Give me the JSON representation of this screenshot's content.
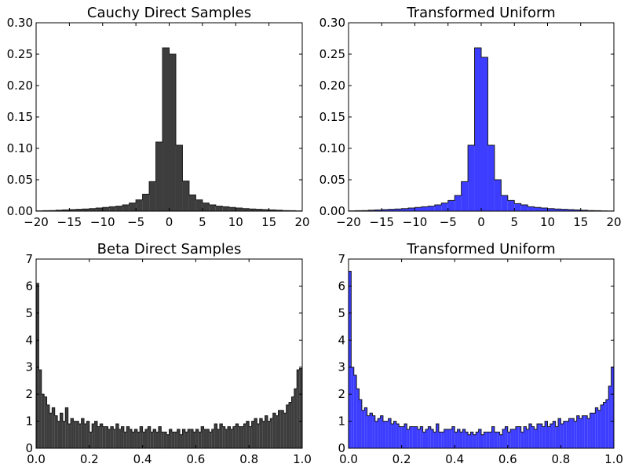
{
  "chart_data": [
    {
      "type": "histogram",
      "title": "Cauchy Direct Samples",
      "color": "#3d3d3d",
      "xlim": [
        -20,
        20
      ],
      "ylim": [
        0,
        0.3
      ],
      "xticks": [
        -20,
        -15,
        -10,
        -5,
        0,
        5,
        10,
        15,
        20
      ],
      "xtick_labels": [
        "−20",
        "−15",
        "−10",
        "−5",
        "0",
        "5",
        "10",
        "15",
        "20"
      ],
      "yticks": [
        0,
        0.05,
        0.1,
        0.15,
        0.2,
        0.25,
        0.3
      ],
      "ytick_labels": [
        "0.00",
        "0.05",
        "0.10",
        "0.15",
        "0.20",
        "0.25",
        "0.30"
      ],
      "bin_edges": [
        -20,
        -19,
        -18,
        -17,
        -16,
        -15,
        -14,
        -13,
        -12,
        -11,
        -10,
        -9,
        -8,
        -7,
        -6,
        -5,
        -4,
        -3,
        -2,
        -1,
        0,
        1,
        2,
        3,
        4,
        5,
        6,
        7,
        8,
        9,
        10,
        11,
        12,
        13,
        14,
        15,
        16,
        17,
        18,
        19,
        20
      ],
      "values": [
        0.0005,
        0.0008,
        0.001,
        0.0015,
        0.002,
        0.0025,
        0.003,
        0.0035,
        0.004,
        0.005,
        0.006,
        0.007,
        0.008,
        0.01,
        0.013,
        0.018,
        0.027,
        0.047,
        0.11,
        0.26,
        0.25,
        0.105,
        0.048,
        0.026,
        0.018,
        0.013,
        0.01,
        0.008,
        0.007,
        0.006,
        0.005,
        0.004,
        0.0035,
        0.003,
        0.0025,
        0.002,
        0.0015,
        0.001,
        0.0008,
        0.0005
      ]
    },
    {
      "type": "histogram",
      "title": "Transformed Uniform",
      "color": "#3d3dff",
      "xlim": [
        -20,
        20
      ],
      "ylim": [
        0,
        0.3
      ],
      "xticks": [
        -20,
        -15,
        -10,
        -5,
        0,
        5,
        10,
        15,
        20
      ],
      "xtick_labels": [
        "−20",
        "−15",
        "−10",
        "−5",
        "0",
        "5",
        "10",
        "15",
        "20"
      ],
      "yticks": [
        0,
        0.05,
        0.1,
        0.15,
        0.2,
        0.25,
        0.3
      ],
      "ytick_labels": [
        "0.00",
        "0.05",
        "0.10",
        "0.15",
        "0.20",
        "0.25",
        "0.30"
      ],
      "bin_edges": [
        -20,
        -19,
        -18,
        -17,
        -16,
        -15,
        -14,
        -13,
        -12,
        -11,
        -10,
        -9,
        -8,
        -7,
        -6,
        -5,
        -4,
        -3,
        -2,
        -1,
        0,
        1,
        2,
        3,
        4,
        5,
        6,
        7,
        8,
        9,
        10,
        11,
        12,
        13,
        14,
        15,
        16,
        17,
        18,
        19,
        20
      ],
      "values": [
        0.0005,
        0.0008,
        0.001,
        0.0015,
        0.002,
        0.0025,
        0.003,
        0.0035,
        0.004,
        0.005,
        0.006,
        0.007,
        0.008,
        0.01,
        0.013,
        0.017,
        0.025,
        0.047,
        0.105,
        0.26,
        0.245,
        0.105,
        0.05,
        0.025,
        0.017,
        0.012,
        0.01,
        0.007,
        0.006,
        0.005,
        0.004,
        0.0035,
        0.003,
        0.0025,
        0.002,
        0.0015,
        0.001,
        0.0008,
        0.0005,
        0.0003
      ]
    },
    {
      "type": "histogram",
      "title": "Beta Direct Samples",
      "color": "#3d3d3d",
      "xlim": [
        0,
        1
      ],
      "ylim": [
        0,
        7
      ],
      "xticks": [
        0,
        0.2,
        0.4,
        0.6,
        0.8,
        1.0
      ],
      "xtick_labels": [
        "0.0",
        "0.2",
        "0.4",
        "0.6",
        "0.8",
        "1.0"
      ],
      "yticks": [
        0,
        1,
        2,
        3,
        4,
        5,
        6,
        7
      ],
      "ytick_labels": [
        "0",
        "1",
        "2",
        "3",
        "4",
        "5",
        "6",
        "7"
      ],
      "bin_width": 0.01,
      "values": [
        6.1,
        2.9,
        2.0,
        1.9,
        1.6,
        1.3,
        1.5,
        1.2,
        1.0,
        1.3,
        1.0,
        1.5,
        0.9,
        1.1,
        1.0,
        1.0,
        0.9,
        1.1,
        0.9,
        1.0,
        0.6,
        0.9,
        1.0,
        0.8,
        0.9,
        0.8,
        0.8,
        0.7,
        0.8,
        0.7,
        0.9,
        0.7,
        0.8,
        0.6,
        0.8,
        0.7,
        0.6,
        0.7,
        0.6,
        0.8,
        0.6,
        0.7,
        0.8,
        0.6,
        0.7,
        0.6,
        0.8,
        0.6,
        0.6,
        0.5,
        0.7,
        0.6,
        0.6,
        0.7,
        0.5,
        0.7,
        0.6,
        0.7,
        0.7,
        0.6,
        0.7,
        0.6,
        0.8,
        0.7,
        0.7,
        0.6,
        0.7,
        0.9,
        0.7,
        0.9,
        0.8,
        0.7,
        0.8,
        0.7,
        0.8,
        0.9,
        0.8,
        0.8,
        0.9,
        1.0,
        0.8,
        1.0,
        1.1,
        0.9,
        1.1,
        1.0,
        1.2,
        1.0,
        1.1,
        1.3,
        1.2,
        1.4,
        1.4,
        1.3,
        1.6,
        1.7,
        1.9,
        2.2,
        2.9,
        2.95
      ]
    },
    {
      "type": "histogram",
      "title": "Transformed Uniform",
      "color": "#3d3dff",
      "xlim": [
        0,
        1
      ],
      "ylim": [
        0,
        7
      ],
      "xticks": [
        0,
        0.2,
        0.4,
        0.6,
        0.8,
        1.0
      ],
      "xtick_labels": [
        "0.0",
        "0.2",
        "0.4",
        "0.6",
        "0.8",
        "1.0"
      ],
      "yticks": [
        0,
        1,
        2,
        3,
        4,
        5,
        6,
        7
      ],
      "ytick_labels": [
        "0",
        "1",
        "2",
        "3",
        "4",
        "5",
        "6",
        "7"
      ],
      "bin_width": 0.01,
      "values": [
        6.55,
        3.0,
        2.7,
        2.2,
        1.8,
        1.4,
        1.5,
        1.2,
        1.3,
        1.2,
        1.0,
        1.1,
        1.2,
        1.0,
        1.0,
        1.1,
        0.9,
        1.0,
        0.9,
        0.8,
        0.8,
        0.9,
        0.7,
        0.8,
        0.8,
        0.8,
        0.7,
        0.8,
        0.6,
        0.7,
        0.8,
        0.7,
        0.6,
        0.9,
        0.6,
        0.6,
        0.7,
        0.7,
        0.7,
        0.8,
        0.6,
        0.7,
        0.6,
        0.7,
        0.6,
        0.5,
        0.6,
        0.5,
        0.6,
        0.7,
        0.5,
        0.6,
        0.6,
        0.6,
        0.8,
        0.6,
        0.6,
        0.5,
        0.7,
        0.8,
        0.6,
        0.7,
        0.7,
        0.8,
        0.8,
        0.6,
        0.8,
        0.7,
        0.9,
        0.8,
        0.7,
        0.9,
        0.9,
        0.8,
        1.0,
        0.8,
        0.9,
        1.0,
        0.8,
        1.1,
        0.9,
        1.0,
        1.0,
        1.1,
        1.1,
        1.0,
        1.2,
        1.1,
        1.2,
        1.2,
        1.1,
        1.3,
        1.3,
        1.5,
        1.4,
        1.6,
        1.7,
        1.8,
        2.3,
        3.0
      ]
    }
  ]
}
